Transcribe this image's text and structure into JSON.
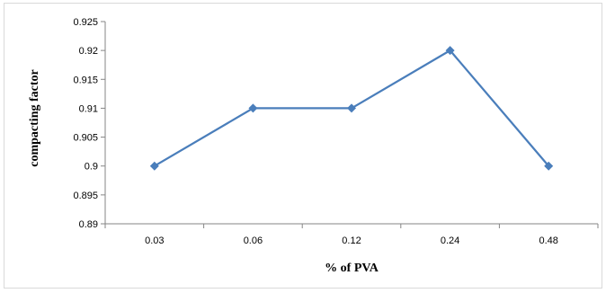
{
  "chart_data": {
    "type": "line",
    "categories": [
      "0.03",
      "0.06",
      "0.12",
      "0.24",
      "0.48"
    ],
    "series": [
      {
        "values": [
          0.9,
          0.91,
          0.91,
          0.92,
          0.9
        ],
        "color": "#4a7ebb",
        "marker": "diamond"
      }
    ],
    "xlabel": "% of PVA",
    "ylabel": "compacting factor",
    "ylim": [
      0.89,
      0.925
    ],
    "ytick_step": 0.005,
    "yticks": [
      "0.89",
      "0.895",
      "0.9",
      "0.905",
      "0.91",
      "0.915",
      "0.92",
      "0.925"
    ],
    "grid": false,
    "legend": "none",
    "colors": {
      "axis": "#868686",
      "series": "#4a7ebb"
    }
  }
}
